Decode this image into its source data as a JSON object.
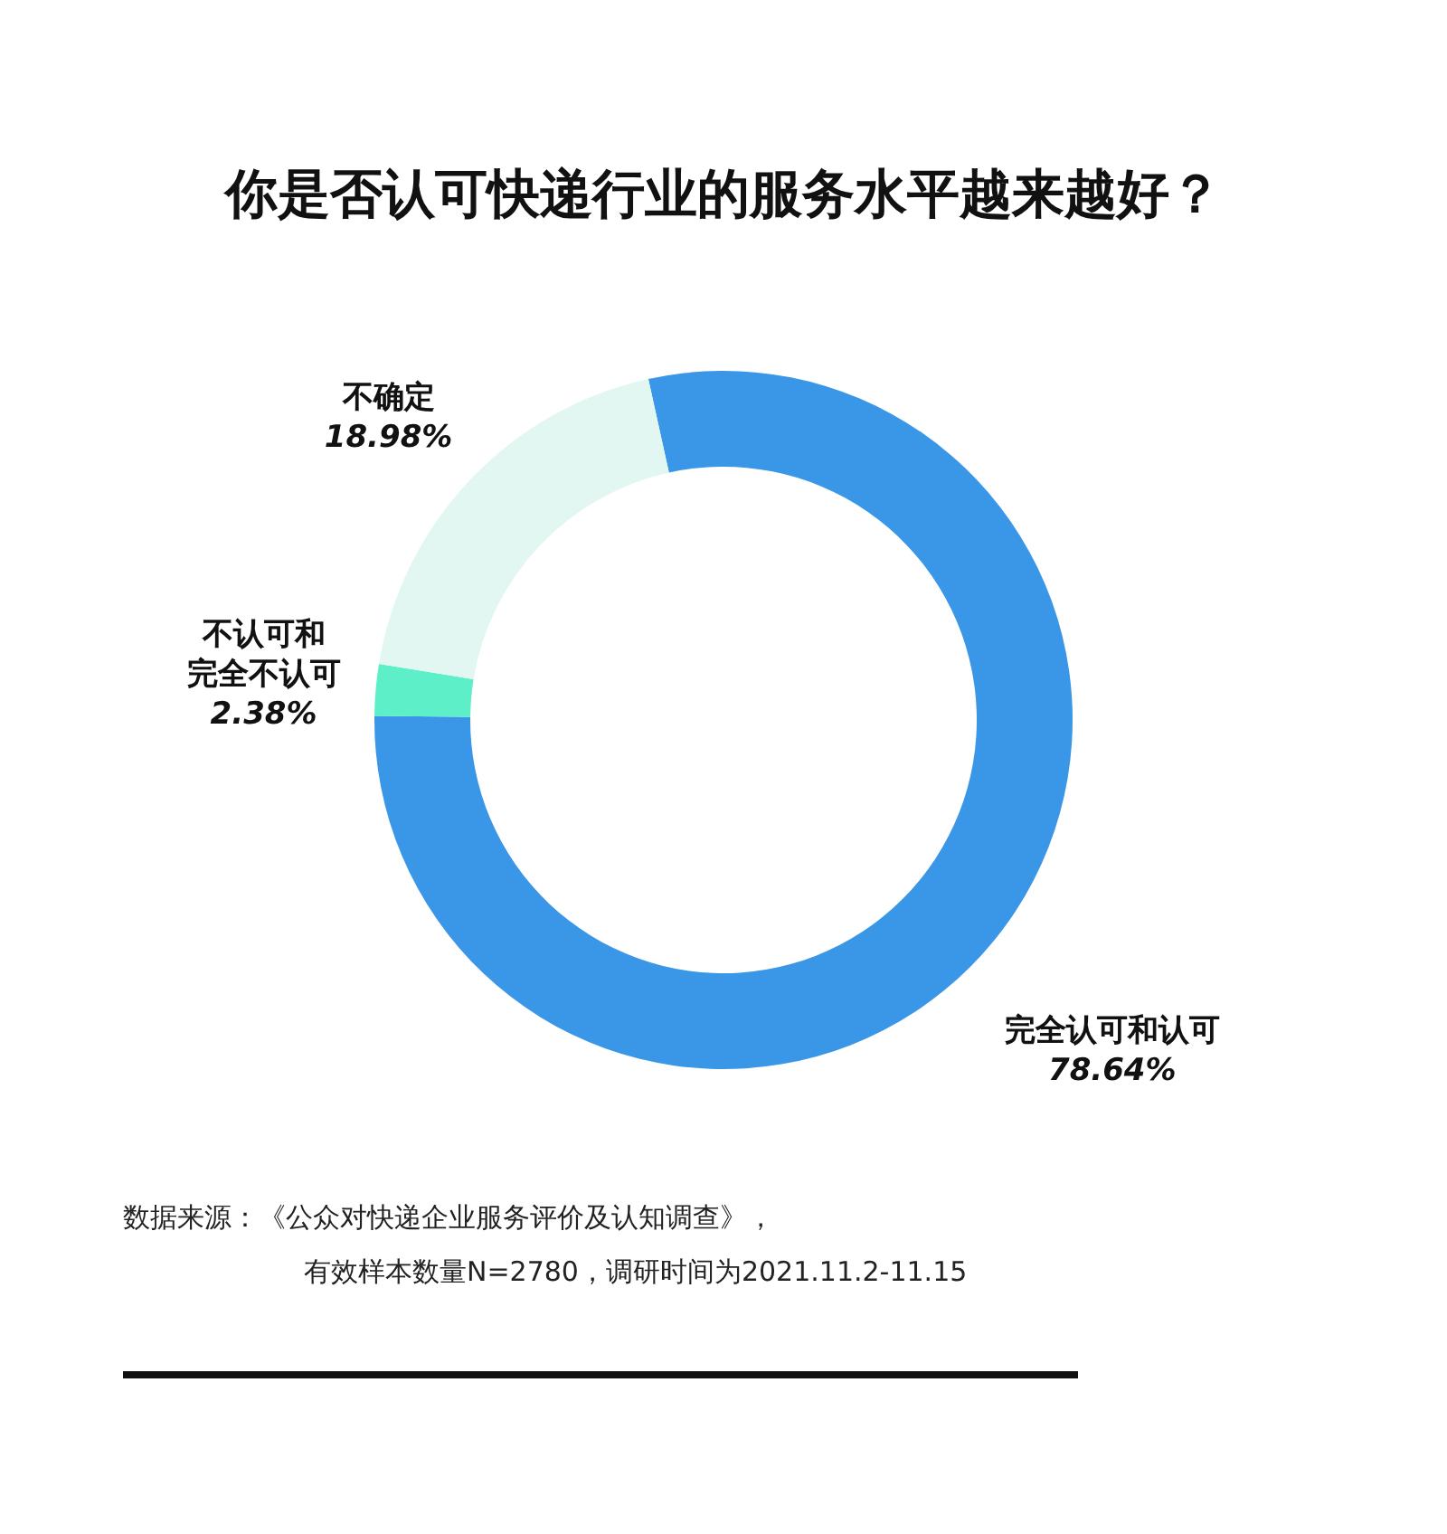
{
  "chart_data": {
    "type": "donut",
    "title": "你是否认可快递行业的服务水平越来越好？",
    "categories": [
      "完全认可和认可",
      "不认可和完全不认可",
      "不确定"
    ],
    "values": [
      78.64,
      2.38,
      18.98
    ],
    "colors": [
      "#3a97e8",
      "#5cefc8",
      "#e2f7f1"
    ],
    "value_labels": [
      "78.64%",
      "2.38%",
      "18.98%"
    ],
    "annotations": [
      "数据来源：《公众对快递企业服务评价及认知调查》，",
      "有效样本数量N=2780，调研时间为2021.11.2-11.15"
    ]
  }
}
